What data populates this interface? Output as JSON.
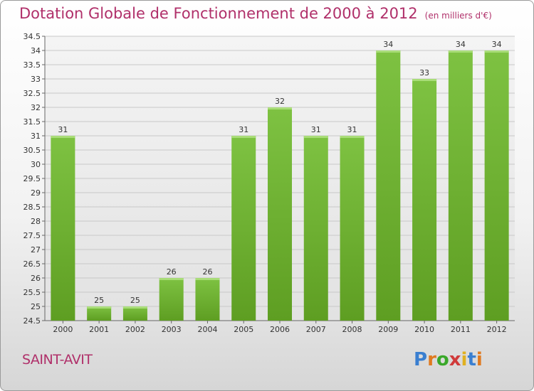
{
  "title": "Dotation Globale de Fonctionnement de 2000 à 2012",
  "unit_note": "(en milliers d'€)",
  "commune": "SAINT-AVIT",
  "logo": {
    "letters": [
      "P",
      "r",
      "o",
      "x",
      "i",
      "t",
      "i"
    ],
    "colors": [
      "#3a7fd0",
      "#e07a20",
      "#3aa82a",
      "#d03a3a",
      "#e0b020",
      "#3a7fd0",
      "#e07a20"
    ]
  },
  "colors": {
    "accent": "#b0306a",
    "bar": "#7ec242",
    "bar_dark": "#5e9e22",
    "grid": "#c8c8c8"
  },
  "chart_data": {
    "type": "bar",
    "title": "Dotation Globale de Fonctionnement de 2000 à 2012",
    "subtitle": "(en milliers d'€)",
    "categories": [
      "2000",
      "2001",
      "2002",
      "2003",
      "2004",
      "2005",
      "2006",
      "2007",
      "2008",
      "2009",
      "2010",
      "2011",
      "2012"
    ],
    "values": [
      31,
      25,
      25,
      26,
      26,
      31,
      32,
      31,
      31,
      34,
      33,
      34,
      34
    ],
    "value_labels": [
      "31",
      "25",
      "25",
      "26",
      "26",
      "31",
      "32",
      "31",
      "31",
      "34",
      "33",
      "34",
      "34"
    ],
    "yticks": [
      "24.5",
      "25",
      "25.5",
      "26",
      "26.5",
      "27",
      "27.5",
      "28",
      "28.5",
      "29",
      "29.5",
      "30",
      "30.5",
      "31",
      "31.5",
      "32",
      "32.5",
      "33",
      "33.5",
      "34",
      "34.5"
    ],
    "ylim": [
      24.5,
      34.5
    ],
    "grid": true,
    "xlabel": "",
    "ylabel": ""
  }
}
